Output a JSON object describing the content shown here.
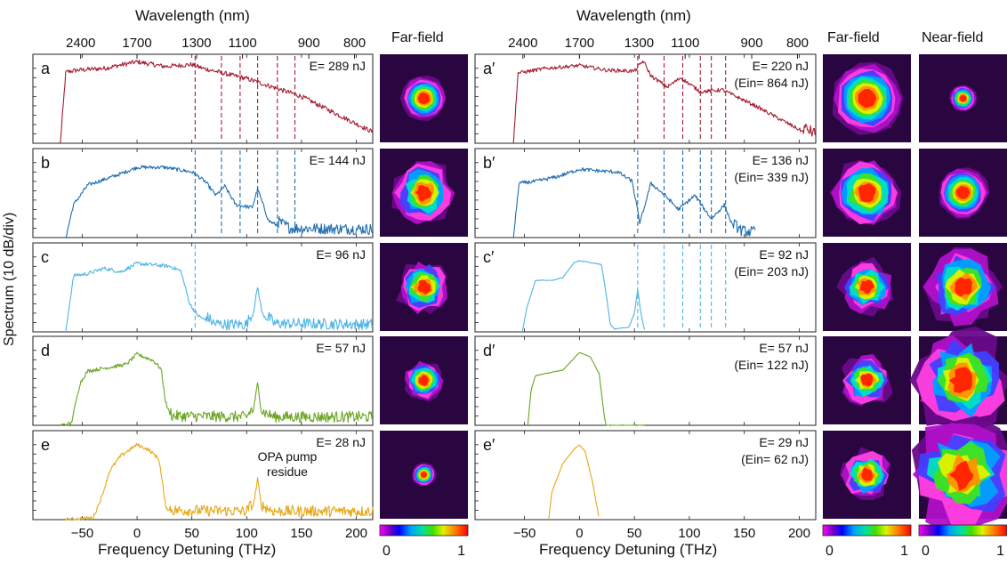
{
  "chart_data": {
    "type": "line",
    "top_axis_label": "Wavelength (nm)",
    "top_ticks": [
      "2400",
      "1700",
      "1300",
      "1100",
      "900",
      "800"
    ],
    "top_tick_wavelengths_nm": [
      2400,
      1700,
      1300,
      1100,
      900,
      800
    ],
    "xlabel": "Frequency Detuning (THz)",
    "ylabel": "Spectrum (10 dB/div)",
    "xticks": [
      -50,
      0,
      50,
      100,
      150,
      200
    ],
    "xlim": [
      -95,
      215
    ],
    "far_field_header": "Far-field",
    "near_field_header": "Near-field",
    "colorbar_min": "0",
    "colorbar_max": "1",
    "annotation": "OPA pump\nresidue",
    "colors": {
      "a": "#a51c30",
      "b": "#1f6db0",
      "c": "#4db5e6",
      "d": "#6aa521",
      "e": "#e6a817"
    },
    "marker_lines_left_THz": [
      53,
      77,
      94,
      110,
      128,
      144
    ],
    "marker_lines_right_THz": [
      53,
      77,
      94,
      110,
      120,
      133
    ],
    "left_panels": [
      {
        "label": "a",
        "energy": "E= 289 nJ",
        "color_key": "a",
        "start": -70,
        "end": 215,
        "markers": 6,
        "x": [
          -70,
          -65,
          -55,
          -30,
          0,
          25,
          50,
          60,
          100,
          150,
          215
        ],
        "y": [
          0,
          7.6,
          7.8,
          8.0,
          8.7,
          8.2,
          8.4,
          8.0,
          6.9,
          5.0,
          1.2
        ]
      },
      {
        "label": "b",
        "energy": "E= 144 nJ",
        "color_key": "b",
        "start": -65,
        "end": 215,
        "markers": 6,
        "x": [
          -65,
          -58,
          -45,
          -15,
          0,
          25,
          50,
          62,
          72,
          80,
          90,
          105,
          110,
          120,
          140,
          215
        ],
        "y": [
          0,
          3.5,
          5.6,
          6.8,
          7.5,
          7.5,
          7.0,
          6.0,
          4.5,
          5.5,
          3.5,
          3.2,
          5.2,
          1.8,
          0.5,
          0.4
        ]
      },
      {
        "label": "c",
        "energy": "E= 96 nJ",
        "color_key": "c",
        "start": -65,
        "end": 215,
        "markers": 1,
        "x": [
          -65,
          -58,
          -45,
          -30,
          -15,
          0,
          30,
          40,
          48,
          55,
          65,
          70,
          80,
          100,
          106,
          110,
          114,
          125,
          215
        ],
        "y": [
          0,
          6.0,
          6.2,
          6.8,
          6.4,
          7.3,
          7.0,
          6.5,
          3.0,
          1.8,
          1.0,
          0.4,
          0.3,
          0.3,
          2.0,
          4.8,
          2.0,
          0.4,
          0.3
        ]
      },
      {
        "label": "d",
        "energy": "E= 57 nJ",
        "color_key": "d",
        "start": -70,
        "end": 215,
        "markers": 0,
        "x": [
          -70,
          -60,
          -52,
          -45,
          -30,
          -10,
          0,
          15,
          22,
          26,
          32,
          100,
          106,
          110,
          114,
          125,
          215
        ],
        "y": [
          0,
          0.2,
          4.5,
          5.8,
          6.1,
          6.5,
          7.6,
          6.9,
          6.0,
          2.5,
          0.5,
          0.4,
          1.5,
          4.5,
          1.0,
          0.4,
          0.4
        ]
      },
      {
        "label": "e",
        "energy": "E= 28 nJ",
        "color_key": "e",
        "start": -65,
        "end": 215,
        "markers": 0,
        "x": [
          -65,
          -40,
          -32,
          -25,
          -15,
          0,
          10,
          20,
          26,
          32,
          100,
          106,
          110,
          114,
          125,
          215
        ],
        "y": [
          0,
          0.2,
          2.5,
          5.2,
          6.8,
          8.0,
          7.5,
          6.5,
          1.5,
          0.5,
          0.4,
          1.5,
          4.3,
          1.0,
          0.4,
          0.4
        ]
      }
    ],
    "right_panels": [
      {
        "label": "a′",
        "energy": "E= 220 nJ",
        "input_energy": "(Ein= 864 nJ)",
        "color_key": "a",
        "start": -60,
        "end": 215,
        "markers": 6,
        "x": [
          -60,
          -56,
          -30,
          0,
          25,
          50,
          58,
          65,
          80,
          92,
          110,
          130,
          160,
          215
        ],
        "y": [
          0,
          7.5,
          8.0,
          8.3,
          7.8,
          7.7,
          8.8,
          7.2,
          6.0,
          7.0,
          5.5,
          5.7,
          4.0,
          0.5
        ]
      },
      {
        "label": "b′",
        "energy": "E= 136 nJ",
        "input_energy": "(Ein= 339 nJ)",
        "color_key": "b",
        "start": -60,
        "end": 160,
        "markers": 6,
        "x": [
          -60,
          -55,
          -40,
          -20,
          0,
          20,
          35,
          48,
          55,
          65,
          78,
          90,
          105,
          120,
          132,
          140,
          148,
          160
        ],
        "y": [
          0,
          5.8,
          6.0,
          6.5,
          7.3,
          7.1,
          7.0,
          6.0,
          1.5,
          5.8,
          4.5,
          3.0,
          4.5,
          2.0,
          3.5,
          1.0,
          0.2,
          0.1
        ]
      },
      {
        "label": "c′",
        "energy": "E= 92 nJ",
        "input_energy": "(Ein= 203 nJ)",
        "color_key": "c",
        "start": -52,
        "end": 60,
        "markers": 6,
        "x": [
          -52,
          -48,
          -40,
          -25,
          -15,
          -5,
          0,
          20,
          25,
          28,
          32,
          45,
          50,
          53,
          56,
          59,
          62
        ],
        "y": [
          0,
          2.5,
          5.5,
          5.5,
          5.8,
          7.4,
          7.6,
          7.2,
          3.5,
          0.8,
          0.3,
          0.5,
          2.0,
          4.5,
          2.0,
          0.3,
          0.1
        ]
      },
      {
        "label": "d′",
        "energy": "E= 57 nJ",
        "input_energy": "(Ein= 122 nJ)",
        "color_key": "d",
        "start": -47,
        "end": 60,
        "markers": 0,
        "x": [
          -47,
          -44,
          -40,
          -32,
          -15,
          0,
          10,
          18,
          22,
          24
        ],
        "y": [
          0,
          3.8,
          5.3,
          5.5,
          5.9,
          7.8,
          7.3,
          5.5,
          1.5,
          0
        ]
      },
      {
        "label": "e′",
        "energy": "E= 29 nJ",
        "input_energy": "(Ein= 62 nJ)",
        "color_key": "e",
        "start": -28,
        "end": 18,
        "markers": 0,
        "x": [
          -28,
          -25,
          -15,
          -5,
          0,
          5,
          12,
          18
        ],
        "y": [
          0,
          3.0,
          6.0,
          7.5,
          8.0,
          7.3,
          4.0,
          0
        ]
      }
    ],
    "far_field_left": [
      {
        "sigma": 0.15,
        "blobs": 1
      },
      {
        "sigma": 0.2,
        "blobs": 3
      },
      {
        "sigma": 0.17,
        "blobs": 3
      },
      {
        "sigma": 0.13,
        "blobs": 2
      },
      {
        "sigma": 0.08,
        "blobs": 1
      }
    ],
    "far_field_right": [
      {
        "sigma": 0.24,
        "blobs": 1
      },
      {
        "sigma": 0.23,
        "blobs": 2
      },
      {
        "sigma": 0.17,
        "blobs": 3
      },
      {
        "sigma": 0.16,
        "blobs": 3
      },
      {
        "sigma": 0.16,
        "blobs": 3
      }
    ],
    "near_field_right": [
      {
        "sigma": 0.09,
        "blobs": 1
      },
      {
        "sigma": 0.17,
        "blobs": 1
      },
      {
        "sigma": 0.24,
        "blobs": 3
      },
      {
        "sigma": 0.3,
        "blobs": 4
      },
      {
        "sigma": 0.33,
        "blobs": 5
      }
    ]
  }
}
